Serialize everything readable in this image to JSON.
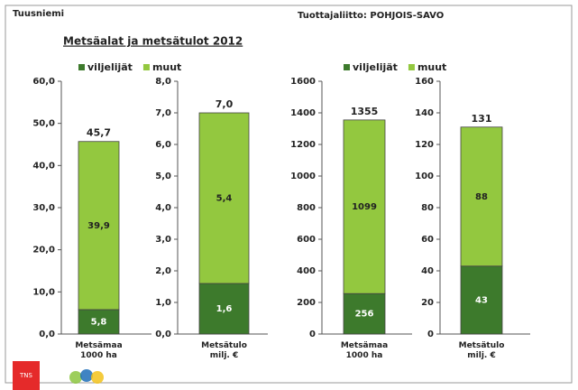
{
  "header": {
    "left": "Tuusniemi",
    "right": "Tuottajaliitto: POHJOIS-SAVO",
    "title": "Metsäalat ja metsätulot 2012",
    "logo": "TNS"
  },
  "chart_data": [
    {
      "type": "bar",
      "categories": [
        "Metsämaa\n1000 ha"
      ],
      "series": [
        {
          "name": "viljelijät",
          "color": "#3d7a2c",
          "values": [
            5.8
          ],
          "value_labels": [
            "5,8"
          ]
        },
        {
          "name": "muut",
          "color": "#93c83f",
          "values": [
            39.9
          ],
          "value_labels": [
            "39,9"
          ]
        }
      ],
      "total": 45.7,
      "total_label": "45,7",
      "ylim": [
        0,
        60
      ],
      "yticks": [
        {
          "value": 0,
          "label": "0,0"
        },
        {
          "value": 10,
          "label": "10,0"
        },
        {
          "value": 20,
          "label": "20,0"
        },
        {
          "value": 30,
          "label": "30,0"
        },
        {
          "value": 40,
          "label": "40,0"
        },
        {
          "value": 50,
          "label": "50,0"
        },
        {
          "value": 60,
          "label": "60,0"
        }
      ]
    },
    {
      "type": "bar",
      "categories": [
        "Metsätulo\nmilj. €"
      ],
      "series": [
        {
          "color": "#3d7a2c",
          "values": [
            1.6
          ],
          "value_labels": [
            "1,6"
          ]
        },
        {
          "color": "#93c83f",
          "values": [
            5.4
          ],
          "value_labels": [
            "5,4"
          ]
        }
      ],
      "total": 7.0,
      "total_label": "7,0",
      "ylim": [
        0,
        8
      ],
      "yticks": [
        {
          "value": 0,
          "label": "0,0"
        },
        {
          "value": 1,
          "label": "1,0"
        },
        {
          "value": 2,
          "label": "2,0"
        },
        {
          "value": 3,
          "label": "3,0"
        },
        {
          "value": 4,
          "label": "4,0"
        },
        {
          "value": 5,
          "label": "5,0"
        },
        {
          "value": 6,
          "label": "6,0"
        },
        {
          "value": 7,
          "label": "7,0"
        },
        {
          "value": 8,
          "label": "8,0"
        }
      ]
    },
    {
      "type": "bar",
      "categories": [
        "Metsämaa\n1000 ha"
      ],
      "series": [
        {
          "name": "viljelijät",
          "color": "#3d7a2c",
          "values": [
            256
          ]
        },
        {
          "name": "muut",
          "color": "#93c83f",
          "values": [
            1099
          ]
        }
      ],
      "total": 1355,
      "ylim": [
        0,
        1600
      ],
      "yticks": [
        0,
        200,
        400,
        600,
        800,
        1000,
        1200,
        1400,
        1600
      ]
    },
    {
      "type": "bar",
      "categories": [
        "Metsätulo\nmilj. €"
      ],
      "series": [
        {
          "color": "#3d7a2c",
          "values": [
            43
          ]
        },
        {
          "color": "#93c83f",
          "values": [
            88
          ]
        }
      ],
      "total": 131,
      "ylim": [
        0,
        160
      ],
      "yticks": [
        0,
        20,
        40,
        60,
        80,
        100,
        120,
        140,
        160
      ]
    }
  ]
}
